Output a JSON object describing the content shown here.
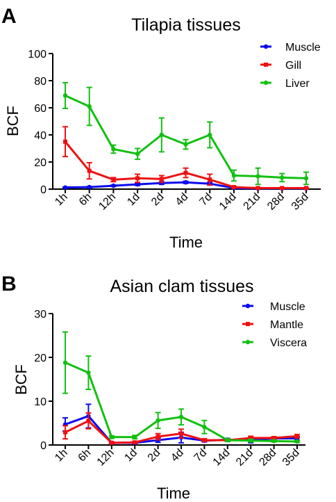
{
  "chart_data": [
    {
      "type": "line",
      "panel": "A",
      "title": "Tilapia tissues",
      "xlabel": "Time",
      "ylabel": "BCF",
      "categories": [
        "1h",
        "6h",
        "12h",
        "1d",
        "2d",
        "4d",
        "7d",
        "14d",
        "21d",
        "28d",
        "35d"
      ],
      "ylim": [
        0,
        100
      ],
      "yticks": [
        0,
        20,
        40,
        60,
        80,
        100
      ],
      "legend_position": "top-right",
      "grid": false,
      "series": [
        {
          "name": "Muscle",
          "color": "#0a0af0",
          "values": [
            1.2,
            1.5,
            2.5,
            3.5,
            4.5,
            5,
            4,
            0.8,
            0.5,
            0.5,
            0.5
          ],
          "errors": [
            0.3,
            0.4,
            0.5,
            0.8,
            1.0,
            0.8,
            1.0,
            0.2,
            0.2,
            0.2,
            0.2
          ]
        },
        {
          "name": "Gill",
          "color": "#ee1111",
          "values": [
            35,
            13.5,
            7,
            8,
            7.5,
            12,
            7,
            1.5,
            0.8,
            0.8,
            0.8
          ],
          "errors": [
            11,
            6,
            1.5,
            3,
            2.5,
            3.5,
            4,
            0.5,
            0.3,
            0.3,
            0.3
          ]
        },
        {
          "name": "Liver",
          "color": "#11c011",
          "values": [
            69,
            61,
            29.5,
            26,
            40,
            33,
            40,
            10,
            9.5,
            8.5,
            8
          ],
          "errors": [
            9.5,
            14,
            3,
            4,
            12.5,
            3.5,
            9.5,
            4,
            6,
            3,
            4.5
          ]
        }
      ]
    },
    {
      "type": "line",
      "panel": "B",
      "title": "Asian clam tissues",
      "xlabel": "Time",
      "ylabel": "BCF",
      "categories": [
        "1h",
        "6h",
        "12h",
        "1d",
        "2d",
        "4d",
        "7d",
        "14d",
        "21d",
        "28d",
        "35d"
      ],
      "ylim": [
        0,
        30
      ],
      "yticks": [
        0,
        10,
        20,
        30
      ],
      "legend_position": "top-right",
      "grid": false,
      "series": [
        {
          "name": "Muscle",
          "color": "#0a0af0",
          "values": [
            4.7,
            6.6,
            0.5,
            0.5,
            1.1,
            1.7,
            1.0,
            1.2,
            1.1,
            1.5,
            1.5
          ],
          "errors": [
            1.5,
            2.7,
            0.2,
            0.2,
            0.5,
            1.2,
            0.3,
            0.3,
            0.6,
            0.3,
            0.4
          ]
        },
        {
          "name": "Mantle",
          "color": "#ee1111",
          "values": [
            2.9,
            5.5,
            0.5,
            0.6,
            1.9,
            2.6,
            1.1,
            1.1,
            1.6,
            1.6,
            2.0
          ],
          "errors": [
            1.5,
            1.8,
            0.2,
            0.2,
            0.7,
            1.0,
            0.3,
            0.3,
            0.4,
            0.3,
            0.4
          ]
        },
        {
          "name": "Viscera",
          "color": "#11c011",
          "values": [
            18.8,
            16.5,
            1.8,
            1.8,
            5.6,
            6.4,
            4.1,
            1.1,
            1.0,
            0.9,
            0.8
          ],
          "errors": [
            7,
            3.8,
            0.3,
            0.4,
            1.8,
            1.8,
            1.5,
            0.3,
            0.3,
            0.2,
            0.2
          ]
        }
      ]
    }
  ]
}
